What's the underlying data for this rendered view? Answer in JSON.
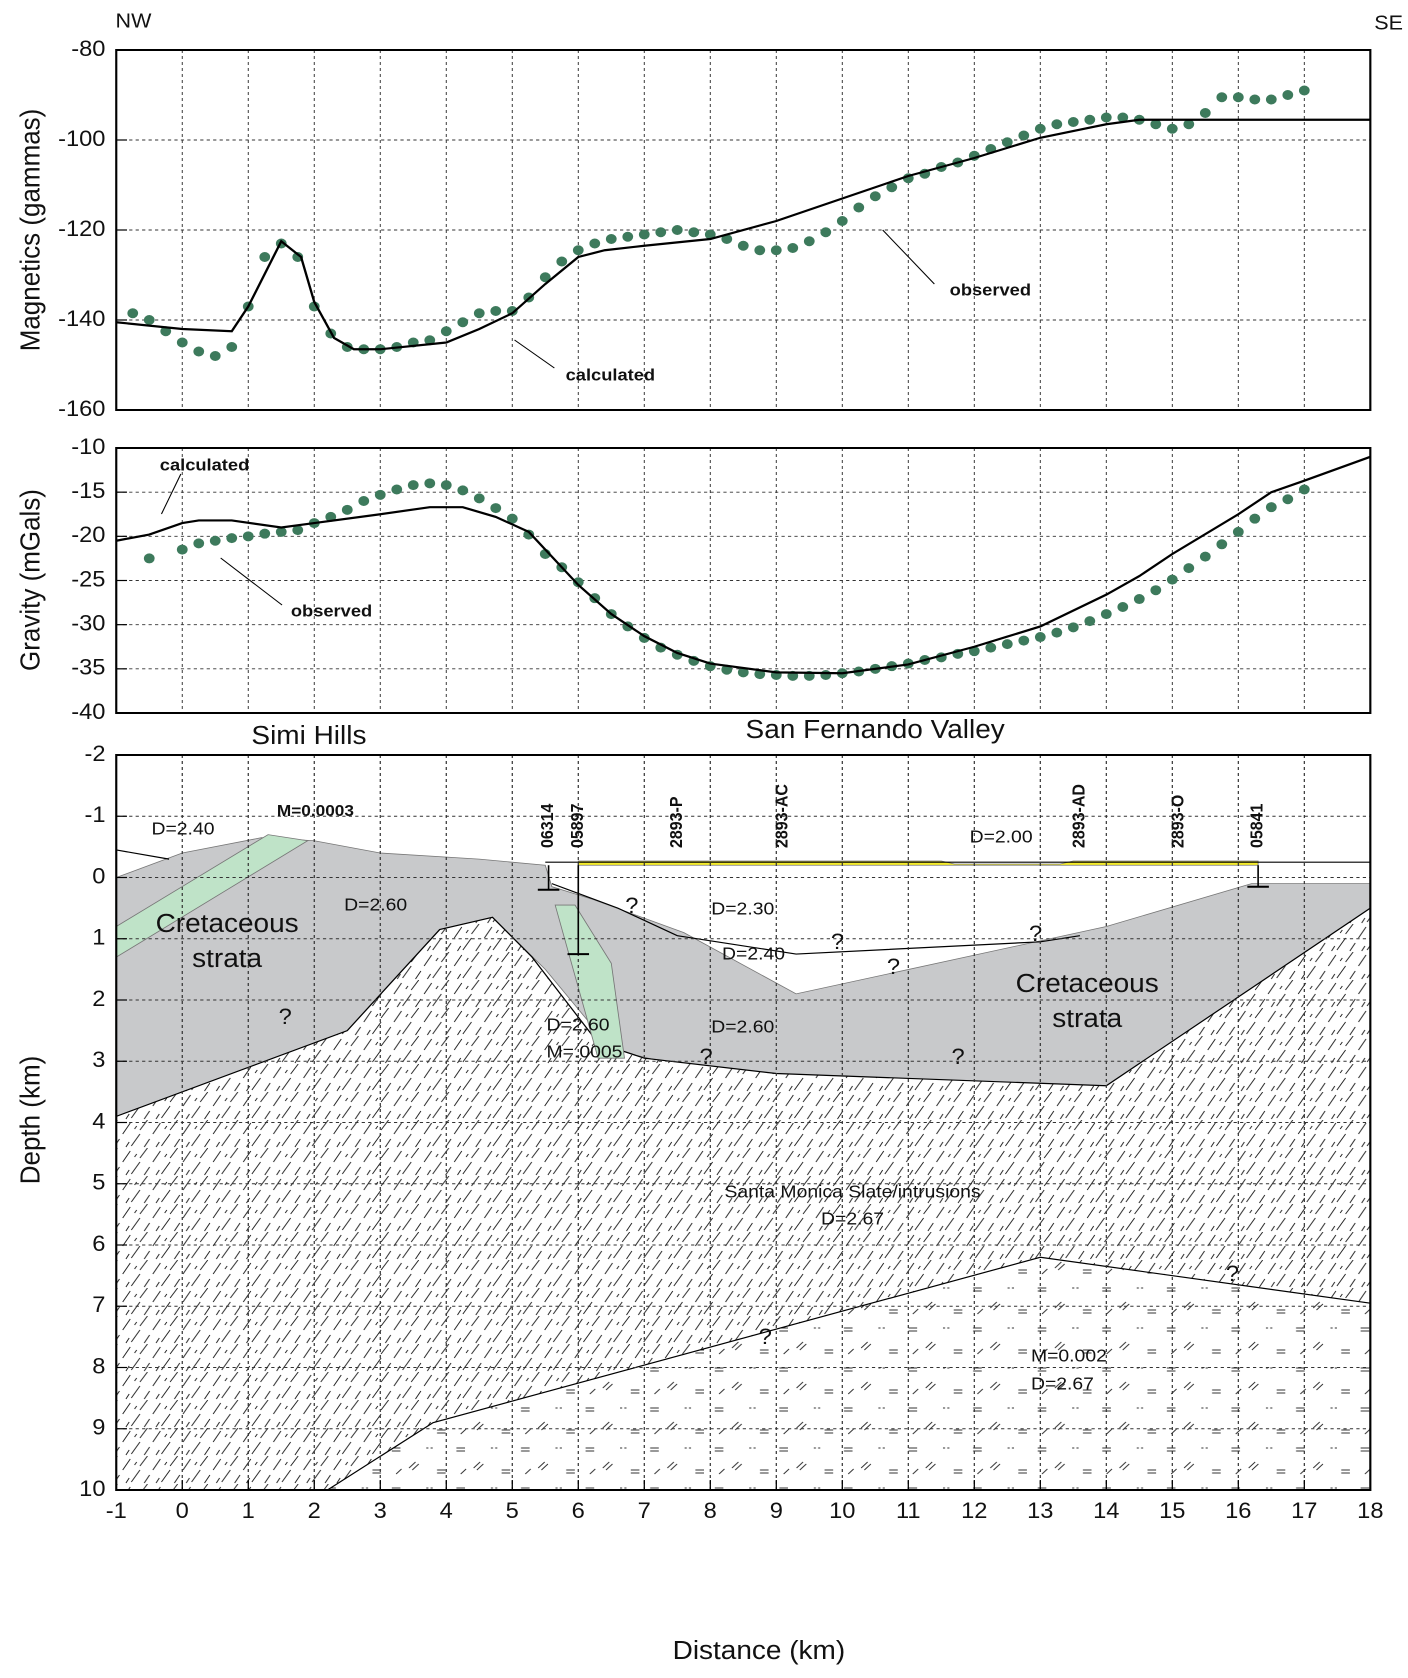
{
  "chart_data": [
    {
      "type": "line",
      "annotations": [
        "NW",
        "SE"
      ],
      "ylabel": "Magnetics (gammas)",
      "xlim": [
        -1,
        18
      ],
      "ylim": [
        -160,
        -80
      ],
      "yticks": [
        -160,
        -140,
        -120,
        -100,
        -80
      ],
      "grid": true,
      "series": [
        {
          "name": "observed",
          "mode": "markers",
          "color": "#3d7a5c",
          "x": [
            -0.75,
            -0.5,
            -0.25,
            0,
            0.25,
            0.5,
            0.75,
            1,
            1.25,
            1.5,
            1.75,
            2,
            2.25,
            2.5,
            2.75,
            3,
            3.25,
            3.5,
            3.75,
            4,
            4.25,
            4.5,
            4.75,
            5,
            5.25,
            5.5,
            5.75,
            6,
            6.25,
            6.5,
            6.75,
            7,
            7.25,
            7.5,
            7.75,
            8,
            8.25,
            8.5,
            8.75,
            9,
            9.25,
            9.5,
            9.75,
            10,
            10.25,
            10.5,
            10.75,
            11,
            11.25,
            11.5,
            11.75,
            12,
            12.25,
            12.5,
            12.75,
            13,
            13.25,
            13.5,
            13.75,
            14,
            14.25,
            14.5,
            14.75,
            15,
            15.25,
            15.5,
            15.75,
            16,
            16.25,
            16.5,
            16.75,
            17
          ],
          "values": [
            -138.5,
            -140,
            -142.5,
            -145,
            -147,
            -148,
            -146,
            -137,
            -126,
            -123,
            -126,
            -137,
            -143,
            -146,
            -146.5,
            -146.5,
            -146,
            -145,
            -144.5,
            -142.5,
            -140.5,
            -138.5,
            -138,
            -138,
            -135,
            -130.5,
            -127,
            -124.5,
            -123,
            -122,
            -121.5,
            -121,
            -120.5,
            -120,
            -120.5,
            -121,
            -122,
            -123.5,
            -124.5,
            -124.5,
            -124,
            -122.5,
            -120.5,
            -118,
            -115,
            -112.5,
            -110.5,
            -108.5,
            -107.5,
            -106,
            -105,
            -103.5,
            -102,
            -100.5,
            -99,
            -97.5,
            -96.5,
            -96,
            -95.5,
            -95,
            -95,
            -95.5,
            -96.5,
            -97.5,
            -96.5,
            -94,
            -90.5,
            -90.5,
            -91,
            -91,
            -90,
            -89
          ]
        },
        {
          "name": "calculated",
          "mode": "line",
          "color": "#000000",
          "x": [
            -1,
            0,
            0.75,
            1,
            1.5,
            1.8,
            2,
            2.3,
            2.6,
            3,
            4,
            4.5,
            5,
            5.5,
            6,
            6.4,
            7,
            8,
            9,
            10,
            11,
            12,
            13,
            14,
            14.5,
            15,
            18
          ],
          "values": [
            -140.5,
            -142,
            -142.5,
            -137,
            -122.5,
            -126,
            -136,
            -144,
            -146.5,
            -146.5,
            -145,
            -142,
            -138.5,
            -132,
            -126,
            -124.5,
            -123.5,
            -122,
            -118,
            -113,
            -108,
            -104,
            -99.5,
            -96.5,
            -95.5,
            -95.5,
            -95.5
          ]
        }
      ]
    },
    {
      "type": "line",
      "ylabel": "Gravity (mGals)",
      "xlim": [
        -1,
        18
      ],
      "ylim": [
        -40,
        -10
      ],
      "yticks": [
        -40,
        -35,
        -30,
        -25,
        -20,
        -15,
        -10
      ],
      "grid": true,
      "series": [
        {
          "name": "observed",
          "mode": "markers",
          "color": "#3d7a5c",
          "x": [
            -0.5,
            0,
            0.25,
            0.5,
            0.75,
            1,
            1.25,
            1.5,
            1.75,
            2,
            2.25,
            2.5,
            2.75,
            3,
            3.25,
            3.5,
            3.75,
            4,
            4.25,
            4.5,
            4.75,
            5,
            5.25,
            5.5,
            5.75,
            6,
            6.25,
            6.5,
            6.75,
            7,
            7.25,
            7.5,
            7.75,
            8,
            8.25,
            8.5,
            8.75,
            9,
            9.25,
            9.5,
            9.75,
            10,
            10.25,
            10.5,
            10.75,
            11,
            11.25,
            11.5,
            11.75,
            12,
            12.25,
            12.5,
            12.75,
            13,
            13.25,
            13.5,
            13.75,
            14,
            14.25,
            14.5,
            14.75,
            15,
            15.25,
            15.5,
            15.75,
            16,
            16.25,
            16.5,
            16.75,
            17
          ],
          "values": [
            -22.5,
            -21.5,
            -20.8,
            -20.5,
            -20.2,
            -20,
            -19.7,
            -19.5,
            -19.3,
            -18.5,
            -17.8,
            -17,
            -16,
            -15.3,
            -14.7,
            -14.2,
            -14,
            -14.2,
            -14.8,
            -15.7,
            -16.8,
            -18,
            -19.8,
            -22,
            -23.5,
            -25.2,
            -27,
            -28.8,
            -30.2,
            -31.5,
            -32.6,
            -33.4,
            -34.1,
            -34.7,
            -35.1,
            -35.4,
            -35.6,
            -35.7,
            -35.8,
            -35.8,
            -35.7,
            -35.5,
            -35.3,
            -35,
            -34.7,
            -34.4,
            -34,
            -33.7,
            -33.3,
            -33,
            -32.6,
            -32.2,
            -31.8,
            -31.4,
            -30.9,
            -30.3,
            -29.6,
            -28.8,
            -28,
            -27.1,
            -26.1,
            -24.9,
            -23.6,
            -22.3,
            -20.9,
            -19.5,
            -18,
            -16.7,
            -15.8,
            -14.7
          ]
        },
        {
          "name": "calculated",
          "mode": "line",
          "color": "#000000",
          "x": [
            -1,
            -0.5,
            0,
            0.25,
            0.75,
            1.5,
            2,
            3,
            3.75,
            4.25,
            4.75,
            5.25,
            5.5,
            6,
            6.5,
            7,
            7.5,
            8,
            9,
            10,
            11,
            12,
            13,
            14,
            14.5,
            15,
            16,
            16.5,
            17,
            18
          ],
          "values": [
            -20.5,
            -19.8,
            -18.5,
            -18.2,
            -18.2,
            -19,
            -18.5,
            -17.5,
            -16.7,
            -16.7,
            -17.8,
            -19.5,
            -21.5,
            -25.5,
            -28.8,
            -31.3,
            -33.2,
            -34.4,
            -35.4,
            -35.5,
            -34.5,
            -32.5,
            -30.2,
            -26.6,
            -24.5,
            -22,
            -17.5,
            -15,
            -13.7,
            -11
          ]
        }
      ]
    },
    {
      "type": "cross-section",
      "xlabel": "Distance (km)",
      "ylabel": "Depth (km)",
      "xlim": [
        -1,
        18
      ],
      "xticks": [
        -1,
        0,
        1,
        2,
        3,
        4,
        5,
        6,
        7,
        8,
        9,
        10,
        11,
        12,
        13,
        14,
        15,
        16,
        17,
        18
      ],
      "ylim": [
        10,
        -2
      ],
      "yticks": [
        -2,
        -1,
        0,
        1,
        2,
        3,
        4,
        5,
        6,
        7,
        8,
        9,
        10
      ],
      "grid": true,
      "layers": [
        {
          "style": "solid",
          "color": "#c8c9cb",
          "x": [
            -1,
            0,
            1.2,
            2,
            3,
            4.5,
            5.5,
            5.6,
            6.2,
            7.6,
            9.3,
            14,
            16.2,
            18,
            18,
            14,
            10,
            8,
            6.5,
            5.5,
            4.7,
            3.9,
            2.5,
            -1
          ],
          "y": [
            0,
            -0.4,
            -0.65,
            -0.6,
            -0.4,
            -0.3,
            -0.2,
            0.15,
            0.35,
            0.9,
            1.9,
            0.8,
            0.1,
            0.1,
            3.1,
            3.4,
            3.35,
            3.2,
            2.8,
            1.5,
            0.65,
            0.85,
            2.5,
            3.9
          ]
        },
        {
          "style": "hatch",
          "color": "#ffffff",
          "x": [
            -1,
            2.5,
            3.9,
            4.7,
            5.3,
            6.3,
            7,
            9,
            14,
            18,
            18,
            -1
          ],
          "y": [
            3.9,
            2.5,
            0.85,
            0.65,
            1.3,
            2.7,
            2.95,
            3.2,
            3.4,
            0.5,
            10,
            10
          ]
        },
        {
          "style": "dash",
          "color": "#ffffff",
          "x": [
            2.2,
            3.8,
            13,
            18,
            18
          ],
          "y": [
            10,
            8.9,
            6.2,
            6.95,
            10
          ]
        },
        {
          "style": "solid",
          "color": "#bfe3c8",
          "x": [
            -1,
            1.3,
            1.9,
            -1
          ],
          "y": [
            0.8,
            -0.7,
            -0.6,
            1.3
          ]
        },
        {
          "style": "solid",
          "color": "#bfe3c8",
          "x": [
            5.65,
            5.95,
            6.5,
            6.7,
            6.3
          ],
          "y": [
            0.45,
            0.45,
            1.4,
            2.95,
            2.95
          ]
        },
        {
          "style": "solid",
          "color": "#f5ec2a",
          "x": [
            6,
            11.5,
            11.7,
            13.3,
            13.5,
            16.3,
            16.3,
            6
          ],
          "y": [
            -0.27,
            -0.27,
            -0.22,
            -0.22,
            -0.27,
            -0.27,
            -0.2,
            -0.2
          ]
        }
      ],
      "lines": [
        {
          "x": [
            5.6,
            6.6,
            7.5,
            9.3,
            13,
            13.6
          ],
          "y": [
            0.1,
            0.5,
            0.95,
            1.25,
            1.05,
            0.95
          ]
        },
        {
          "x": [
            5.5,
            18
          ],
          "y": [
            -0.25,
            -0.25
          ]
        },
        {
          "x": [
            -1,
            -0.2
          ],
          "y": [
            -0.45,
            -0.3
          ]
        }
      ],
      "wells": [
        {
          "label": "06314",
          "x": 5.55,
          "depth": 0.2
        },
        {
          "label": "05897",
          "x": 6.0,
          "depth": 1.25
        },
        {
          "label": "2893-P",
          "x": 7.5
        },
        {
          "label": "2893-AC",
          "x": 9.1
        },
        {
          "label": "2893-AD",
          "x": 13.6
        },
        {
          "label": "2893-O",
          "x": 15.1
        },
        {
          "label": "05841",
          "x": 16.3,
          "depth": 0.15
        }
      ],
      "annotations": [
        "Simi Hills",
        "San Fernando Valley",
        "D=2.40",
        "M=0.0003",
        "Cretaceous",
        "strata",
        "D=2.60",
        "D=2.30",
        "D=2.40",
        "D=2.00",
        "Cretaceous",
        "strata",
        "D=2.60",
        "M=.0005",
        "D=2.60",
        "Santa Monica Slate/intrusions",
        "D=2.67",
        "M=0.002",
        "D=2.67",
        "?",
        "?",
        "?",
        "?",
        "?",
        "?",
        "?",
        "?",
        "?"
      ]
    }
  ]
}
